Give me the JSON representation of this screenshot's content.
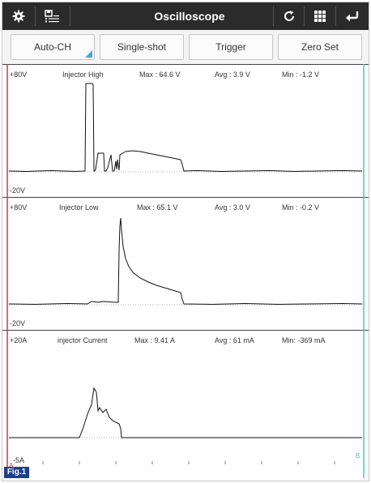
{
  "header": {
    "title": "Oscilloscope",
    "icons": [
      "gear-icon",
      "save-list-icon",
      "refresh-icon",
      "grid-icon",
      "back-arrow-icon"
    ]
  },
  "toolbar": {
    "auto_ch": "Auto-CH",
    "single_shot": "Single-shot",
    "trigger": "Trigger",
    "zero_set": "Zero Set"
  },
  "channels": [
    {
      "top": "+80V",
      "bottom": "-20V",
      "name": "Injector High",
      "max": "Max : 64.6 V",
      "avg": "Avg : 3.9 V",
      "min": "Min : -1.2 V"
    },
    {
      "top": "+80V",
      "bottom": "-20V",
      "name": "Injector Low",
      "max": "Max : 65.1 V",
      "avg": "Avg : 3.0 V",
      "min": "Min : -0.2 V"
    },
    {
      "top": "+20A",
      "bottom": "-5A",
      "name": "injector Current",
      "max": "Max : 9.41 A",
      "avg": "Avg : 61 mA",
      "min": "Min: -369 mA"
    }
  ],
  "cursors": {
    "left": "A",
    "right": "B"
  },
  "colors": {
    "header": "#2b2b2b",
    "cursor_a": "#d63a3a",
    "cursor_b": "#38c8d8",
    "accent": "#4aa3d8",
    "fig_tag": "#1f3e8c"
  },
  "figure_tag": "Fig.1"
}
